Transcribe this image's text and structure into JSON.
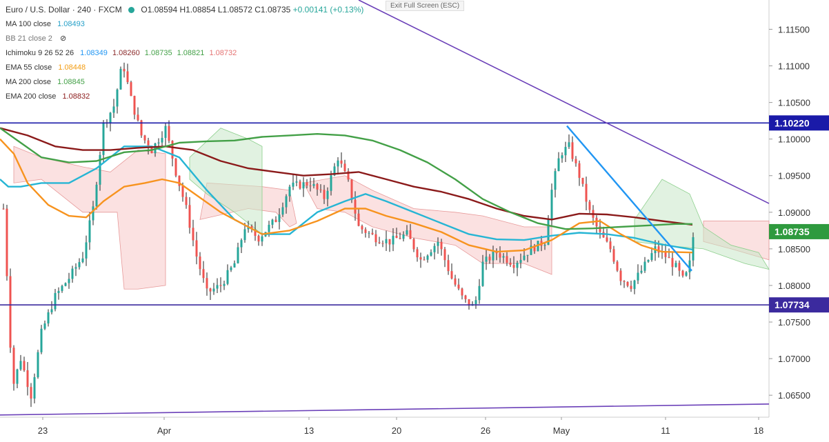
{
  "legend": {
    "symbol": "Euro / U.S. Dollar · 240 · FXCM",
    "ohlc": {
      "o": "O1.08594",
      "h": "H1.08854",
      "l": "L1.08572",
      "c": "C1.08735",
      "chg": "+0.00141 (+0.13%)"
    },
    "indicators": [
      {
        "name": "MA 100 close",
        "values": [
          "1.08493"
        ],
        "color": "#26a0c8"
      },
      {
        "name": "BB 21 close 2",
        "values": [],
        "color": "#888888"
      },
      {
        "name": "Ichimoku 9 26 52 26",
        "values": [
          "1.08349",
          "1.08260",
          "1.08735",
          "1.08821",
          "1.08732"
        ],
        "colors": [
          "#2196f3",
          "#8b2a2a",
          "#43a047",
          "#43a047",
          "#e57373"
        ]
      },
      {
        "name": "EMA 55 close",
        "values": [
          "1.08448"
        ],
        "color": "#f39c12"
      },
      {
        "name": "MA 200 close",
        "values": [
          "1.08845"
        ],
        "color": "#43a047"
      },
      {
        "name": "EMA 200 close",
        "values": [
          "1.08832"
        ],
        "color": "#8b1a1a"
      }
    ]
  },
  "exit_label": "Exit Full Screen (ESC)",
  "chart_data": {
    "type": "candlestick",
    "title": "Euro / U.S. Dollar · 240 · FXCM",
    "ylim": [
      1.062,
      1.119
    ],
    "y_ticks": [
      "1.11500",
      "1.11000",
      "1.10500",
      "1.10000",
      "1.09500",
      "1.09000",
      "1.08500",
      "1.08000",
      "1.07500",
      "1.07000",
      "1.06500"
    ],
    "x_ticks": [
      "23",
      "Apr",
      "13",
      "20",
      "26",
      "May",
      "11",
      "18"
    ],
    "price_labels": [
      {
        "value": "1.10220",
        "color": "#1a1aa8"
      },
      {
        "value": "1.08735",
        "color": "#2e9a3e"
      },
      {
        "value": "1.07734",
        "color": "#3b2a9e"
      }
    ],
    "horizontal_lines": [
      1.1022,
      1.07734
    ],
    "series": [
      {
        "name": "MA 100 close",
        "color": "#26b5d4",
        "values": [
          [
            0,
            1.0945
          ],
          [
            12,
            1.0935
          ],
          [
            30,
            1.0935
          ],
          [
            60,
            1.094
          ],
          [
            100,
            1.094
          ],
          [
            140,
            1.096
          ],
          [
            180,
            1.099
          ],
          [
            220,
            1.099
          ],
          [
            260,
            1.0975
          ],
          [
            300,
            1.093
          ],
          [
            340,
            1.089
          ],
          [
            380,
            1.087
          ],
          [
            420,
            1.087
          ],
          [
            460,
            1.09
          ],
          [
            500,
            1.0915
          ],
          [
            530,
            1.0925
          ],
          [
            560,
            1.0915
          ],
          [
            600,
            1.09
          ],
          [
            640,
            1.0885
          ],
          [
            680,
            1.087
          ],
          [
            720,
            1.0863
          ],
          [
            760,
            1.0862
          ],
          [
            800,
            1.0868
          ],
          [
            840,
            1.0872
          ],
          [
            880,
            1.087
          ],
          [
            920,
            1.0865
          ],
          [
            960,
            1.0856
          ],
          [
            1004,
            1.0849
          ]
        ]
      },
      {
        "name": "EMA 55 close",
        "color": "#f7931e",
        "values": [
          [
            0,
            1.1
          ],
          [
            20,
            1.098
          ],
          [
            40,
            1.094
          ],
          [
            70,
            1.091
          ],
          [
            100,
            1.0895
          ],
          [
            125,
            1.0893
          ],
          [
            150,
            1.0915
          ],
          [
            180,
            1.0935
          ],
          [
            210,
            1.094
          ],
          [
            235,
            1.0945
          ],
          [
            260,
            1.094
          ],
          [
            290,
            1.092
          ],
          [
            320,
            1.09
          ],
          [
            350,
            1.0885
          ],
          [
            380,
            1.087
          ],
          [
            420,
            1.0875
          ],
          [
            460,
            1.0888
          ],
          [
            500,
            1.0905
          ],
          [
            530,
            1.0905
          ],
          [
            560,
            1.0895
          ],
          [
            600,
            1.0885
          ],
          [
            640,
            1.0873
          ],
          [
            680,
            1.0855
          ],
          [
            720,
            1.0846
          ],
          [
            760,
            1.0848
          ],
          [
            800,
            1.0862
          ],
          [
            840,
            1.0885
          ],
          [
            870,
            1.0888
          ],
          [
            900,
            1.087
          ],
          [
            930,
            1.0855
          ],
          [
            960,
            1.0846
          ],
          [
            1004,
            1.0845
          ]
        ]
      },
      {
        "name": "EMA 200 close",
        "color": "#8b1a1a",
        "values": [
          [
            0,
            1.1015
          ],
          [
            40,
            1.1005
          ],
          [
            80,
            1.099
          ],
          [
            120,
            1.0985
          ],
          [
            160,
            1.0985
          ],
          [
            200,
            1.0988
          ],
          [
            240,
            1.099
          ],
          [
            280,
            1.0985
          ],
          [
            320,
            1.097
          ],
          [
            360,
            1.096
          ],
          [
            400,
            1.0955
          ],
          [
            440,
            1.095
          ],
          [
            480,
            1.0952
          ],
          [
            520,
            1.0955
          ],
          [
            560,
            1.0945
          ],
          [
            600,
            1.0935
          ],
          [
            640,
            1.0928
          ],
          [
            680,
            1.0918
          ],
          [
            720,
            1.0905
          ],
          [
            760,
            1.0895
          ],
          [
            800,
            1.089
          ],
          [
            840,
            1.0898
          ],
          [
            880,
            1.0897
          ],
          [
            920,
            1.0893
          ],
          [
            960,
            1.0888
          ],
          [
            1004,
            1.0883
          ]
        ]
      },
      {
        "name": "MA 200 close",
        "color": "#43a047",
        "values": [
          [
            0,
            1.1015
          ],
          [
            30,
            1.0995
          ],
          [
            60,
            1.0975
          ],
          [
            100,
            1.0968
          ],
          [
            140,
            1.097
          ],
          [
            180,
            1.0982
          ],
          [
            220,
            1.0985
          ],
          [
            260,
            1.0995
          ],
          [
            300,
            1.0997
          ],
          [
            340,
            1.0998
          ],
          [
            380,
            1.1003
          ],
          [
            420,
            1.1005
          ],
          [
            460,
            1.1007
          ],
          [
            500,
            1.1005
          ],
          [
            540,
            1.0998
          ],
          [
            580,
            1.0985
          ],
          [
            620,
            1.0968
          ],
          [
            660,
            1.0945
          ],
          [
            700,
            1.0918
          ],
          [
            740,
            1.09
          ],
          [
            780,
            1.0885
          ],
          [
            820,
            1.0877
          ],
          [
            860,
            1.0878
          ],
          [
            900,
            1.088
          ],
          [
            940,
            1.0882
          ],
          [
            980,
            1.0884
          ],
          [
            1004,
            1.0884
          ]
        ]
      }
    ],
    "candles_summary": {
      "first_close": 1.0905,
      "low": 1.064,
      "high": 1.1147,
      "last_close": 1.08735
    }
  }
}
